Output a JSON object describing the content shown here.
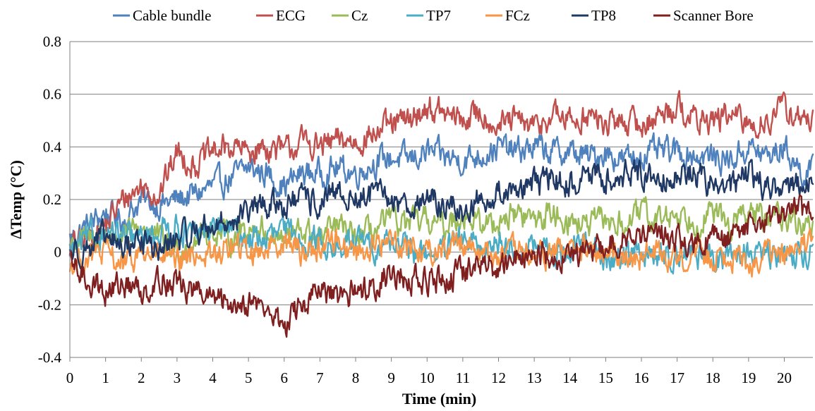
{
  "chart_data": {
    "type": "line",
    "title": "",
    "xlabel": "Time (min)",
    "ylabel": "ΔTemp (°C)",
    "xlim": [
      0,
      20.8
    ],
    "ylim": [
      -0.4,
      0.8
    ],
    "x_ticks": [
      "0",
      "1",
      "2",
      "3",
      "4",
      "5",
      "6",
      "7",
      "8",
      "9",
      "10",
      "11",
      "12",
      "13",
      "14",
      "15",
      "16",
      "17",
      "18",
      "19",
      "20"
    ],
    "y_ticks": [
      "0.8",
      "0.6",
      "0.4",
      "0.2",
      "0",
      "-0.2",
      "-0.4"
    ],
    "grid": "horizontal",
    "legend_position": "top",
    "x": [
      0,
      0.5,
      1,
      1.5,
      2,
      2.5,
      3,
      3.5,
      4,
      4.5,
      5,
      5.5,
      6,
      6.5,
      7,
      7.5,
      8,
      8.5,
      9,
      9.5,
      10,
      10.5,
      11,
      11.5,
      12,
      12.5,
      13,
      13.5,
      14,
      14.5,
      15,
      15.5,
      16,
      16.5,
      17,
      17.5,
      18,
      18.5,
      19,
      19.5,
      20,
      20.5,
      20.8
    ],
    "series": [
      {
        "name": "Cable bundle",
        "color": "#4f81bd",
        "values": [
          0.05,
          0.1,
          0.15,
          0.12,
          0.2,
          0.18,
          0.2,
          0.22,
          0.25,
          0.28,
          0.32,
          0.3,
          0.25,
          0.3,
          0.3,
          0.32,
          0.3,
          0.34,
          0.36,
          0.35,
          0.38,
          0.36,
          0.35,
          0.37,
          0.4,
          0.38,
          0.4,
          0.38,
          0.38,
          0.36,
          0.38,
          0.35,
          0.37,
          0.38,
          0.38,
          0.37,
          0.36,
          0.35,
          0.4,
          0.36,
          0.4,
          0.3,
          0.3
        ]
      },
      {
        "name": "ECG",
        "color": "#c0504d",
        "values": [
          0.02,
          0.05,
          0.1,
          0.2,
          0.25,
          0.22,
          0.38,
          0.33,
          0.38,
          0.4,
          0.38,
          0.4,
          0.38,
          0.42,
          0.4,
          0.42,
          0.42,
          0.45,
          0.48,
          0.5,
          0.55,
          0.52,
          0.5,
          0.53,
          0.48,
          0.5,
          0.47,
          0.52,
          0.5,
          0.52,
          0.48,
          0.5,
          0.48,
          0.52,
          0.56,
          0.5,
          0.5,
          0.52,
          0.48,
          0.5,
          0.55,
          0.5,
          0.5
        ]
      },
      {
        "name": "Cz",
        "color": "#9bbb59",
        "values": [
          0.03,
          0.05,
          0.08,
          0.05,
          0.1,
          0.05,
          0.0,
          0.05,
          0.08,
          0.05,
          0.1,
          0.08,
          0.05,
          0.08,
          0.05,
          0.1,
          0.05,
          0.08,
          0.12,
          0.1,
          0.12,
          0.1,
          0.15,
          0.1,
          0.12,
          0.15,
          0.12,
          0.15,
          0.12,
          0.1,
          0.12,
          0.1,
          0.15,
          0.12,
          0.15,
          0.12,
          0.15,
          0.1,
          0.15,
          0.12,
          0.15,
          0.1,
          0.1
        ]
      },
      {
        "name": "TP7",
        "color": "#4bacc6",
        "values": [
          0.0,
          0.05,
          0.08,
          0.05,
          0.05,
          0.08,
          0.1,
          0.05,
          0.1,
          0.08,
          0.05,
          0.05,
          0.08,
          0.05,
          0.05,
          0.0,
          0.05,
          0.02,
          0.05,
          0.0,
          0.0,
          0.0,
          0.05,
          0.0,
          0.05,
          0.0,
          0.02,
          0.0,
          0.0,
          0.05,
          -0.05,
          0.0,
          0.0,
          -0.02,
          0.0,
          0.0,
          -0.05,
          0.0,
          0.0,
          -0.02,
          0.0,
          0.0,
          0.0
        ]
      },
      {
        "name": "FCz",
        "color": "#f79646",
        "values": [
          -0.05,
          -0.02,
          0.0,
          -0.05,
          0.0,
          -0.02,
          -0.05,
          0.0,
          -0.02,
          0.02,
          0.0,
          0.02,
          0.05,
          0.0,
          0.02,
          0.05,
          0.0,
          0.02,
          0.05,
          0.02,
          0.0,
          0.02,
          0.05,
          0.0,
          -0.02,
          0.0,
          -0.02,
          0.0,
          0.02,
          0.0,
          -0.02,
          0.0,
          -0.02,
          0.0,
          -0.02,
          0.0,
          -0.02,
          0.0,
          -0.05,
          0.0,
          -0.02,
          0.02,
          0.05
        ]
      },
      {
        "name": "TP8",
        "color": "#1f3864",
        "values": [
          0.0,
          0.02,
          0.05,
          0.02,
          0.05,
          0.0,
          0.05,
          0.08,
          0.1,
          0.12,
          0.15,
          0.18,
          0.18,
          0.2,
          0.18,
          0.22,
          0.2,
          0.22,
          0.2,
          0.18,
          0.2,
          0.18,
          0.15,
          0.2,
          0.22,
          0.25,
          0.25,
          0.28,
          0.25,
          0.3,
          0.28,
          0.3,
          0.3,
          0.28,
          0.3,
          0.3,
          0.25,
          0.25,
          0.3,
          0.25,
          0.25,
          0.25,
          0.25
        ]
      },
      {
        "name": "Scanner Bore",
        "color": "#7f1f1f",
        "values": [
          -0.05,
          -0.1,
          -0.15,
          -0.12,
          -0.15,
          -0.1,
          -0.12,
          -0.15,
          -0.18,
          -0.2,
          -0.18,
          -0.22,
          -0.28,
          -0.2,
          -0.15,
          -0.18,
          -0.15,
          -0.12,
          -0.08,
          -0.1,
          -0.12,
          -0.1,
          -0.08,
          -0.05,
          -0.05,
          -0.02,
          0.0,
          -0.02,
          0.0,
          0.0,
          0.02,
          0.05,
          0.05,
          0.08,
          0.05,
          0.02,
          0.05,
          0.05,
          0.1,
          0.12,
          0.15,
          0.15,
          0.15
        ]
      }
    ]
  }
}
